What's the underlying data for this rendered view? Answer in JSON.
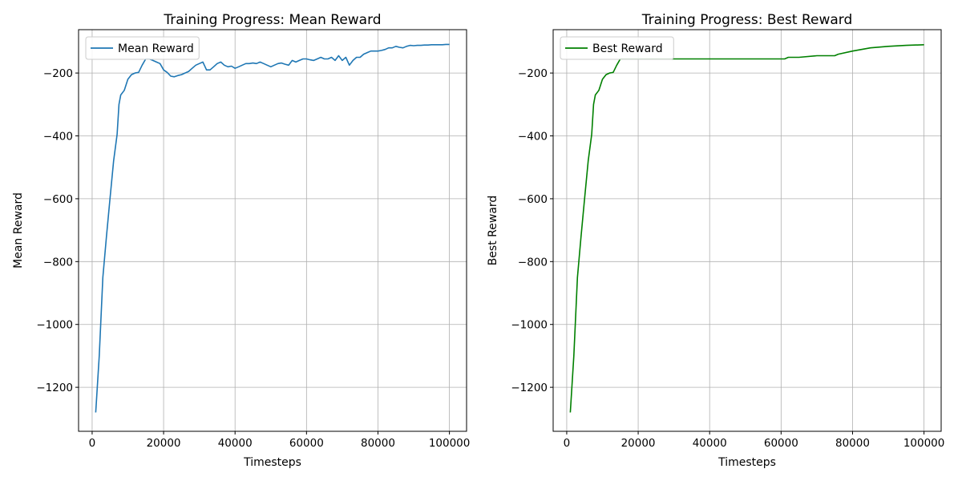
{
  "chart_data": [
    {
      "type": "line",
      "title": "Training Progress: Mean Reward",
      "xlabel": "Timesteps",
      "ylabel": "Mean Reward",
      "xlim": [
        -3800,
        104800
      ],
      "ylim": [
        -1340,
        -62
      ],
      "xticks": [
        0,
        20000,
        40000,
        60000,
        80000,
        100000
      ],
      "yticks": [
        -1200,
        -1000,
        -800,
        -600,
        -400,
        -200
      ],
      "grid": true,
      "legend_position": "top-left",
      "series": [
        {
          "name": "Mean Reward",
          "color": "#1f77b4",
          "x": [
            1000,
            2000,
            3000,
            4000,
            5000,
            6000,
            7000,
            7500,
            8000,
            9000,
            10000,
            11000,
            12000,
            13000,
            14000,
            15000,
            16000,
            17000,
            18000,
            19000,
            20000,
            21000,
            22000,
            23000,
            24000,
            25000,
            26000,
            27000,
            28000,
            29000,
            30000,
            31000,
            32000,
            33000,
            34000,
            35000,
            36000,
            37000,
            38000,
            39000,
            40000,
            41000,
            42000,
            43000,
            44000,
            45000,
            46000,
            47000,
            48000,
            49000,
            50000,
            51000,
            52000,
            53000,
            54000,
            55000,
            56000,
            57000,
            58000,
            59000,
            60000,
            61000,
            62000,
            63000,
            64000,
            65000,
            66000,
            67000,
            68000,
            69000,
            70000,
            71000,
            72000,
            73000,
            74000,
            75000,
            76000,
            77000,
            78000,
            79000,
            80000,
            81000,
            82000,
            83000,
            84000,
            85000,
            86000,
            87000,
            88000,
            89000,
            90000,
            91000,
            92000,
            93000,
            94000,
            95000,
            96000,
            97000,
            98000,
            99000,
            100000
          ],
          "y": [
            -1280,
            -1100,
            -850,
            -720,
            -600,
            -480,
            -395,
            -300,
            -270,
            -255,
            -220,
            -205,
            -200,
            -198,
            -175,
            -155,
            -155,
            -160,
            -165,
            -170,
            -190,
            -198,
            -210,
            -212,
            -208,
            -205,
            -200,
            -195,
            -185,
            -175,
            -170,
            -165,
            -190,
            -190,
            -180,
            -170,
            -165,
            -175,
            -180,
            -178,
            -185,
            -180,
            -175,
            -170,
            -170,
            -168,
            -170,
            -165,
            -170,
            -175,
            -180,
            -175,
            -170,
            -168,
            -172,
            -175,
            -160,
            -165,
            -160,
            -155,
            -155,
            -158,
            -160,
            -155,
            -150,
            -155,
            -155,
            -150,
            -160,
            -145,
            -160,
            -150,
            -175,
            -160,
            -150,
            -150,
            -140,
            -135,
            -130,
            -130,
            -130,
            -128,
            -125,
            -120,
            -120,
            -115,
            -118,
            -120,
            -115,
            -112,
            -113,
            -112,
            -112,
            -111,
            -111,
            -110,
            -110,
            -110,
            -110,
            -109,
            -109
          ]
        }
      ]
    },
    {
      "type": "line",
      "title": "Training Progress: Best Reward",
      "xlabel": "Timesteps",
      "ylabel": "Best Reward",
      "xlim": [
        -3800,
        104800
      ],
      "ylim": [
        -1340,
        -62
      ],
      "xticks": [
        0,
        20000,
        40000,
        60000,
        80000,
        100000
      ],
      "yticks": [
        -1200,
        -1000,
        -800,
        -600,
        -400,
        -200
      ],
      "grid": true,
      "legend_position": "top-left",
      "series": [
        {
          "name": "Best Reward",
          "color": "#008000",
          "x": [
            1000,
            2000,
            3000,
            4000,
            5000,
            6000,
            7000,
            7500,
            8000,
            9000,
            10000,
            11000,
            12000,
            13000,
            14000,
            15000,
            20000,
            25000,
            30000,
            35000,
            40000,
            45000,
            50000,
            55000,
            60000,
            61000,
            62000,
            65000,
            70000,
            75000,
            76000,
            80000,
            85000,
            90000,
            95000,
            100000
          ],
          "y": [
            -1280,
            -1100,
            -850,
            -720,
            -600,
            -480,
            -395,
            -300,
            -270,
            -255,
            -220,
            -205,
            -200,
            -198,
            -175,
            -155,
            -155,
            -155,
            -155,
            -155,
            -155,
            -155,
            -155,
            -155,
            -155,
            -155,
            -150,
            -150,
            -145,
            -145,
            -140,
            -130,
            -120,
            -115,
            -112,
            -110
          ]
        }
      ]
    }
  ]
}
